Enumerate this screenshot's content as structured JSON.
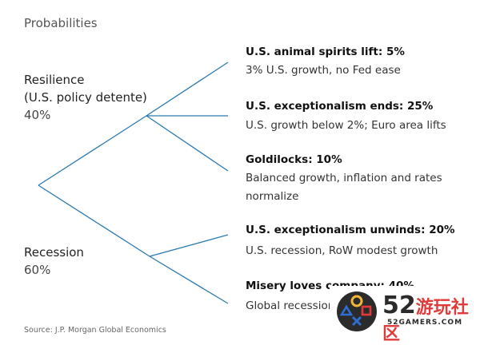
{
  "title": "Probabilities",
  "resilience": {
    "label_line1": "Resilience",
    "label_line2": "(U.S. policy detente)",
    "pct": "40%"
  },
  "recession": {
    "label": "Recession",
    "pct": "60%"
  },
  "leaves": [
    {
      "title": "U.S. animal spirits lift: 5%",
      "desc": "3% U.S. growth, no Fed ease"
    },
    {
      "title": "U.S. exceptionalism ends: 25%",
      "desc": "U.S. growth below 2%; Euro area lifts"
    },
    {
      "title": "Goldilocks: 10%",
      "desc_line1": "Balanced growth, inflation and rates",
      "desc_line2": "normalize"
    },
    {
      "title": "U.S. exceptionalism unwinds: 20%",
      "desc": "U.S. recession, RoW modest growth"
    },
    {
      "title": "Misery loves company: 40%",
      "desc": "Global recession"
    }
  ],
  "source": "Source: J.P. Morgan Global Economics",
  "watermark": {
    "number": "52",
    "cn": "游玩社区",
    "en": "52GAMERS.COM",
    "colors": {
      "red": "#e03a3a",
      "yellow": "#f2b63a",
      "blue": "#2d6fd1",
      "dark": "#2b2b2b"
    }
  },
  "colors": {
    "line": "#2a7ab0",
    "text": "#222222"
  }
}
